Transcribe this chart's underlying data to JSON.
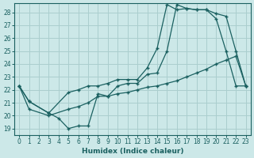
{
  "xlabel": "Humidex (Indice chaleur)",
  "background_color": "#cce8e8",
  "grid_color": "#aacece",
  "line_color": "#1a6060",
  "xlim": [
    -0.5,
    23.5
  ],
  "ylim": [
    18.5,
    28.7
  ],
  "xticks": [
    0,
    1,
    2,
    3,
    4,
    5,
    6,
    7,
    8,
    9,
    10,
    11,
    12,
    13,
    14,
    15,
    16,
    17,
    18,
    19,
    20,
    21,
    22,
    23
  ],
  "yticks": [
    19,
    20,
    21,
    22,
    23,
    24,
    25,
    26,
    27,
    28
  ],
  "curve1_x": [
    0,
    1,
    3,
    4,
    5,
    6,
    7,
    8,
    9,
    10,
    11,
    12,
    13,
    14,
    15,
    16,
    17,
    18,
    19,
    20,
    21,
    22,
    23
  ],
  "curve1_y": [
    22.3,
    21.1,
    20.2,
    19.8,
    19.0,
    19.2,
    19.2,
    21.7,
    21.5,
    22.3,
    22.5,
    22.5,
    23.2,
    23.3,
    25.0,
    28.6,
    28.3,
    28.2,
    28.2,
    27.5,
    25.0,
    22.3,
    22.3
  ],
  "curve2_x": [
    0,
    1,
    3,
    5,
    6,
    7,
    8,
    9,
    10,
    11,
    12,
    13,
    14,
    15,
    16,
    17,
    18,
    19,
    20,
    21,
    22,
    23
  ],
  "curve2_y": [
    22.3,
    21.1,
    20.2,
    21.8,
    22.0,
    22.3,
    22.3,
    22.5,
    22.8,
    22.8,
    22.8,
    23.7,
    25.2,
    28.6,
    28.2,
    28.3,
    28.2,
    28.2,
    27.9,
    27.7,
    25.0,
    22.3
  ],
  "curve3_x": [
    0,
    1,
    3,
    5,
    6,
    7,
    8,
    9,
    10,
    11,
    12,
    13,
    14,
    15,
    16,
    17,
    18,
    19,
    20,
    21,
    22,
    23
  ],
  "curve3_y": [
    22.3,
    20.5,
    20.0,
    20.5,
    20.7,
    21.0,
    21.5,
    21.5,
    21.7,
    21.8,
    22.0,
    22.2,
    22.3,
    22.5,
    22.7,
    23.0,
    23.3,
    23.6,
    24.0,
    24.3,
    24.6,
    22.3
  ]
}
